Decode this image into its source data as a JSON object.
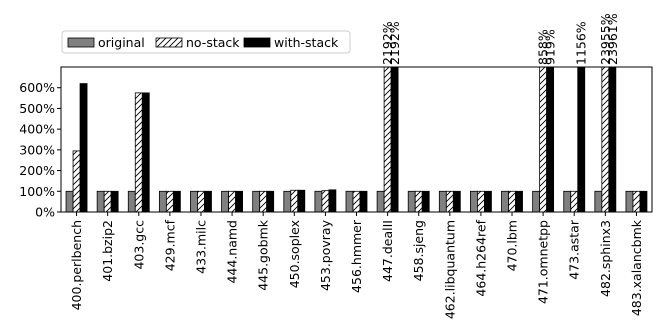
{
  "chart_data": {
    "type": "bar",
    "categories": [
      "400.perlbench",
      "401.bzip2",
      "403.gcc",
      "429.mcf",
      "433.milc",
      "444.namd",
      "445.gobmk",
      "450.soplex",
      "453.povray",
      "456.hmmer",
      "447.dealII",
      "458.sjeng",
      "462.libquantum",
      "464.h264ref",
      "470.lbm",
      "471.omnetpp",
      "473.astar",
      "482.sphinx3",
      "483.xalancbmk"
    ],
    "series": [
      {
        "name": "original",
        "color": "#808080",
        "hatch": false,
        "values": [
          100,
          100,
          100,
          100,
          100,
          100,
          100,
          100,
          100,
          100,
          100,
          100,
          100,
          100,
          100,
          100,
          100,
          100,
          100
        ]
      },
      {
        "name": "no-stack",
        "color": "#ffffff",
        "hatch": true,
        "values": [
          295,
          100,
          575,
          100,
          100,
          100,
          100,
          105,
          103,
          100,
          2192,
          100,
          100,
          100,
          100,
          858,
          100,
          23955,
          100
        ],
        "value_labels": [
          null,
          null,
          null,
          null,
          null,
          null,
          null,
          null,
          null,
          null,
          "2192%",
          null,
          null,
          null,
          null,
          "858%",
          null,
          "23955%",
          null
        ]
      },
      {
        "name": "with-stack",
        "color": "#000000",
        "hatch": false,
        "values": [
          620,
          100,
          575,
          100,
          100,
          100,
          100,
          105,
          107,
          100,
          2192,
          100,
          100,
          100,
          100,
          919,
          1156,
          23961,
          100
        ],
        "value_labels": [
          null,
          null,
          null,
          null,
          null,
          null,
          null,
          null,
          null,
          null,
          "2192%",
          null,
          null,
          null,
          null,
          "919%",
          "1156%",
          "23961%",
          null
        ]
      }
    ],
    "ylim": [
      0,
      700
    ],
    "yticks": [
      {
        "value": 0,
        "label": "0%"
      },
      {
        "value": 100,
        "label": "100%"
      },
      {
        "value": 200,
        "label": "200%"
      },
      {
        "value": 300,
        "label": "300%"
      },
      {
        "value": 400,
        "label": "400%"
      },
      {
        "value": 500,
        "label": "500%"
      },
      {
        "value": 600,
        "label": "600%"
      }
    ],
    "legend": "top-left"
  }
}
